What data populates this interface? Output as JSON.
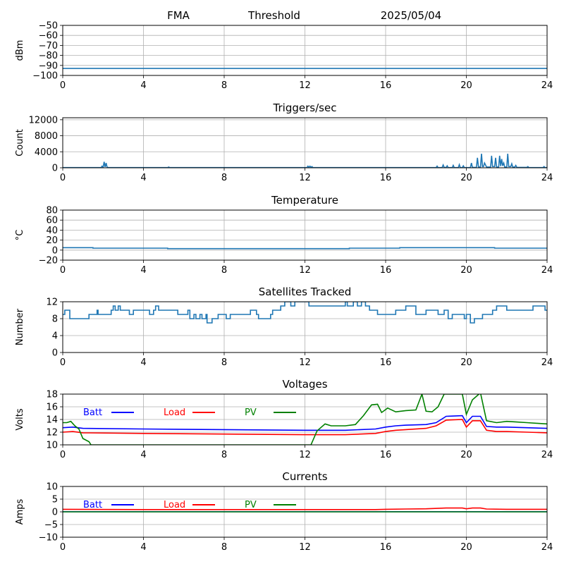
{
  "header": {
    "station": "FMA",
    "mode": "Threshold",
    "date": "2025/05/04"
  },
  "colors": {
    "default_series": "#1f77b4",
    "batt": "#0000ff",
    "load": "#ff0000",
    "pv": "#008000",
    "grid": "#b0b0b0"
  },
  "chart_data": [
    {
      "id": "noise",
      "type": "line",
      "title": "",
      "xlabel": "",
      "ylabel": "dBm",
      "xlim": [
        0,
        24
      ],
      "ylim": [
        -100,
        -50
      ],
      "xticks": [
        0,
        4,
        8,
        12,
        16,
        20,
        24
      ],
      "yticks": [
        -100,
        -90,
        -80,
        -70,
        -60,
        -50
      ],
      "grid": true,
      "series": [
        {
          "color_key": "default_series",
          "x": [
            0,
            24
          ],
          "y": [
            -93,
            -93
          ]
        }
      ]
    },
    {
      "id": "triggers",
      "type": "line",
      "title": "Triggers/sec",
      "xlabel": "",
      "ylabel": "Count",
      "xlim": [
        0,
        24
      ],
      "ylim": [
        0,
        12500
      ],
      "xticks": [
        0,
        4,
        8,
        12,
        16,
        20,
        24
      ],
      "yticks": [
        0,
        4000,
        8000,
        12000
      ],
      "grid": true,
      "series": [
        {
          "color_key": "default_series",
          "x": [
            0,
            1.9,
            1.95,
            2.0,
            2.05,
            2.1,
            2.15,
            2.2,
            2.25,
            2.3,
            5.2,
            5.25,
            5.3,
            12.1,
            12.15,
            12.2,
            12.25,
            12.3,
            12.35,
            12.4,
            18.5,
            18.55,
            18.6,
            18.8,
            18.85,
            18.9,
            19.0,
            19.05,
            19.1,
            19.3,
            19.35,
            19.4,
            19.6,
            19.65,
            19.7,
            19.8,
            19.85,
            19.9,
            20.2,
            20.25,
            20.3,
            20.5,
            20.55,
            20.6,
            20.7,
            20.75,
            20.8,
            20.85,
            20.9,
            21.0,
            21.2,
            21.25,
            21.3,
            21.4,
            21.45,
            21.5,
            21.6,
            21.65,
            21.7,
            21.75,
            21.8,
            21.85,
            21.9,
            22.0,
            22.05,
            22.1,
            22.2,
            22.25,
            22.3,
            22.4,
            22.45,
            22.5,
            23.0,
            23.05,
            23.1,
            23.8,
            23.85,
            23.9,
            24
          ],
          "y": [
            50,
            50,
            400,
            100,
            1500,
            200,
            1200,
            100,
            80,
            50,
            50,
            200,
            50,
            50,
            400,
            100,
            400,
            100,
            300,
            50,
            50,
            400,
            50,
            50,
            700,
            100,
            100,
            500,
            50,
            50,
            600,
            50,
            50,
            800,
            50,
            50,
            500,
            50,
            50,
            1200,
            100,
            100,
            2500,
            200,
            200,
            3500,
            300,
            300,
            1200,
            200,
            200,
            3000,
            300,
            300,
            2500,
            200,
            200,
            3000,
            400,
            2200,
            500,
            1200,
            200,
            200,
            3500,
            300,
            300,
            1000,
            200,
            200,
            600,
            100,
            100,
            300,
            50,
            50,
            300,
            50,
            50
          ]
        }
      ]
    },
    {
      "id": "temperature",
      "type": "line",
      "title": "Temperature",
      "xlabel": "",
      "ylabel": "°C",
      "xlim": [
        0,
        24
      ],
      "ylim": [
        -20,
        80
      ],
      "xticks": [
        0,
        4,
        8,
        12,
        16,
        20,
        24
      ],
      "yticks": [
        -20,
        0,
        20,
        40,
        60,
        80
      ],
      "grid": true,
      "series": [
        {
          "color_key": "default_series",
          "x": [
            0,
            1.5,
            1.5,
            5.2,
            5.2,
            14.2,
            14.2,
            16.7,
            16.7,
            21.4,
            21.4,
            24
          ],
          "y": [
            5,
            5,
            4,
            4,
            3,
            3,
            4,
            4,
            5,
            5,
            4,
            4
          ]
        }
      ]
    },
    {
      "id": "satellites",
      "type": "line",
      "title": "Satellites Tracked",
      "xlabel": "",
      "ylabel": "Number",
      "xlim": [
        0,
        24
      ],
      "ylim": [
        0,
        12
      ],
      "xticks": [
        0,
        4,
        8,
        12,
        16,
        20,
        24
      ],
      "yticks": [
        0,
        4,
        8,
        12
      ],
      "grid": true,
      "series": [
        {
          "color_key": "default_series",
          "step": true,
          "x": [
            0,
            0.1,
            0.3,
            0.35,
            1.3,
            1.6,
            1.7,
            1.75,
            2.0,
            2.4,
            2.5,
            2.6,
            2.75,
            2.85,
            3.3,
            3.5,
            3.9,
            4.3,
            4.5,
            4.6,
            4.75,
            4.85,
            5.3,
            5.5,
            5.7,
            6.2,
            6.3,
            6.5,
            6.6,
            6.8,
            6.9,
            7.1,
            7.15,
            7.4,
            7.7,
            7.9,
            8.1,
            8.3,
            8.4,
            9.3,
            9.6,
            9.7,
            10.3,
            10.4,
            10.6,
            10.8,
            11.0,
            11.3,
            11.5,
            11.9,
            12.2,
            12.4,
            13.0,
            14.0,
            14.1,
            14.4,
            14.6,
            14.8,
            15.0,
            15.2,
            15.4,
            15.6,
            15.8,
            16.1,
            16.5,
            16.8,
            17.0,
            17.5,
            17.8,
            18.0,
            18.3,
            18.6,
            18.9,
            19.1,
            19.3,
            19.6,
            19.9,
            20.0,
            20.2,
            20.4,
            20.6,
            20.8,
            21.3,
            21.5,
            21.8,
            22.0,
            22.3,
            22.6,
            23.0,
            23.3,
            23.6,
            23.9,
            24
          ],
          "y": [
            9,
            10,
            10,
            8,
            9,
            9,
            10,
            9,
            9,
            10,
            11,
            10,
            11,
            10,
            9,
            10,
            10,
            9,
            10,
            11,
            10,
            10,
            10,
            10,
            9,
            10,
            8,
            9,
            8,
            9,
            8,
            9,
            7,
            8,
            9,
            9,
            8,
            9,
            9,
            10,
            9,
            8,
            9,
            10,
            10,
            11,
            12,
            11,
            12,
            12,
            11,
            11,
            11,
            12,
            11,
            12,
            11,
            12,
            11,
            10,
            10,
            9,
            9,
            9,
            10,
            10,
            11,
            9,
            9,
            10,
            10,
            9,
            10,
            8,
            9,
            9,
            8,
            9,
            7,
            8,
            8,
            9,
            10,
            11,
            11,
            10,
            10,
            10,
            10,
            11,
            11,
            10,
            10
          ]
        }
      ]
    },
    {
      "id": "voltages",
      "type": "line",
      "title": "Voltages",
      "xlabel": "",
      "ylabel": "Volts",
      "xlim": [
        0,
        24
      ],
      "ylim": [
        10,
        18
      ],
      "xticks": [
        0,
        4,
        8,
        12,
        16,
        20,
        24
      ],
      "yticks": [
        10,
        12,
        14,
        16,
        18
      ],
      "grid": true,
      "legend": [
        {
          "label": "Batt",
          "color_key": "batt"
        },
        {
          "label": "Load",
          "color_key": "load"
        },
        {
          "label": "PV",
          "color_key": "pv"
        }
      ],
      "series": [
        {
          "name": "Batt",
          "color_key": "batt",
          "x": [
            0,
            0.5,
            1,
            4,
            8,
            12,
            14,
            15.5,
            16,
            16.5,
            17,
            18,
            18.5,
            19,
            19.8,
            20,
            20.3,
            20.7,
            21,
            21.5,
            22,
            23,
            24
          ],
          "y": [
            12.7,
            12.8,
            12.6,
            12.5,
            12.4,
            12.3,
            12.3,
            12.5,
            12.8,
            13.0,
            13.1,
            13.2,
            13.5,
            14.5,
            14.6,
            13.5,
            14.5,
            14.5,
            12.9,
            12.8,
            12.8,
            12.7,
            12.6
          ]
        },
        {
          "name": "Load",
          "color_key": "load",
          "x": [
            0,
            0.5,
            1,
            4,
            8,
            12,
            14,
            15.5,
            16,
            16.5,
            17,
            18,
            18.5,
            19,
            19.8,
            20,
            20.3,
            20.7,
            21,
            21.5,
            22,
            23,
            24
          ],
          "y": [
            12.0,
            12.1,
            11.9,
            11.8,
            11.7,
            11.6,
            11.6,
            11.8,
            12.1,
            12.3,
            12.4,
            12.6,
            13.0,
            13.9,
            14.0,
            12.8,
            13.8,
            13.8,
            12.3,
            12.1,
            12.1,
            12.0,
            11.9
          ]
        },
        {
          "name": "PV",
          "color_key": "pv",
          "x": [
            0,
            0.2,
            0.4,
            0.6,
            0.8,
            1.0,
            1.3,
            1.4,
            12.3,
            12.6,
            13.0,
            13.3,
            13.6,
            14.0,
            14.5,
            14.9,
            15.3,
            15.6,
            15.8,
            16.1,
            16.5,
            17.0,
            17.5,
            17.8,
            18.0,
            18.3,
            18.6,
            18.9,
            19.8,
            20.0,
            20.3,
            20.7,
            21.0,
            21.5,
            22.0,
            22.5,
            23.0,
            23.5,
            24
          ],
          "y": [
            13.5,
            13.5,
            13.7,
            13.0,
            12.5,
            11.0,
            10.5,
            10.0,
            10.0,
            12.2,
            13.3,
            13.0,
            13.0,
            13.0,
            13.2,
            14.6,
            16.3,
            16.4,
            15.1,
            15.8,
            15.2,
            15.4,
            15.5,
            18.0,
            15.3,
            15.2,
            16.0,
            18.0,
            18.0,
            14.8,
            17.1,
            18.2,
            13.8,
            13.5,
            13.7,
            13.6,
            13.5,
            13.4,
            13.3
          ]
        }
      ]
    },
    {
      "id": "currents",
      "type": "line",
      "title": "Currents",
      "xlabel": "",
      "ylabel": "Amps",
      "xlim": [
        0,
        24
      ],
      "ylim": [
        -10,
        10
      ],
      "xticks": [
        0,
        4,
        8,
        12,
        16,
        20,
        24
      ],
      "yticks": [
        -10,
        -5,
        0,
        5,
        10
      ],
      "grid": true,
      "legend": [
        {
          "label": "Batt",
          "color_key": "batt"
        },
        {
          "label": "Load",
          "color_key": "load"
        },
        {
          "label": "PV",
          "color_key": "pv"
        }
      ],
      "series": [
        {
          "name": "Batt",
          "color_key": "batt",
          "x": [
            0,
            24
          ],
          "y": [
            0.05,
            0.05
          ]
        },
        {
          "name": "Load",
          "color_key": "load",
          "x": [
            0,
            4,
            8,
            12,
            15.5,
            16,
            17,
            18,
            19,
            19.8,
            20,
            20.3,
            20.7,
            21,
            22,
            23,
            24
          ],
          "y": [
            1.0,
            0.9,
            0.9,
            0.9,
            0.9,
            1.0,
            1.1,
            1.2,
            1.5,
            1.5,
            1.2,
            1.5,
            1.5,
            1.1,
            1.0,
            1.0,
            1.0
          ]
        },
        {
          "name": "PV",
          "color_key": "pv",
          "x": [
            0,
            24
          ],
          "y": [
            0.0,
            0.0
          ]
        }
      ]
    }
  ]
}
